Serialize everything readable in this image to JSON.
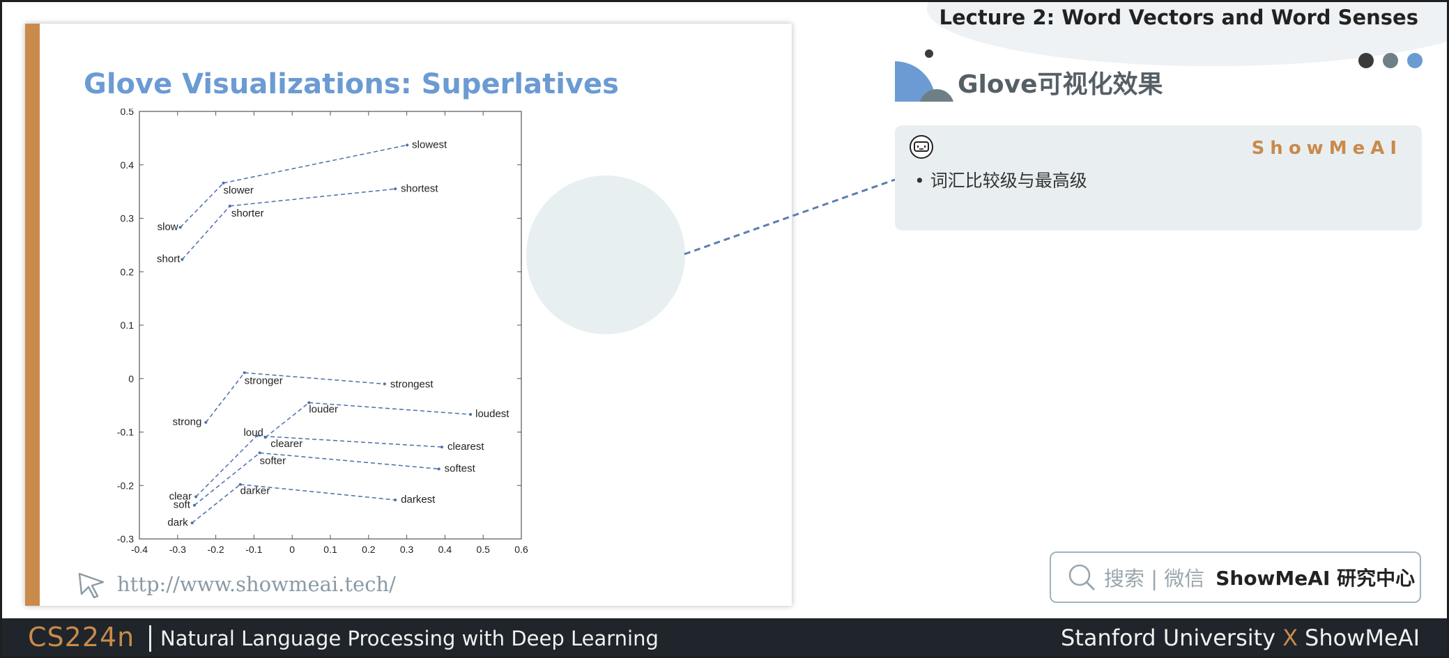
{
  "header": {
    "lecture_title": "Lecture 2:  Word Vectors and Word Senses",
    "dots": [
      "#3a3a3a",
      "#6e7f86",
      "#6b9bd2"
    ]
  },
  "slide": {
    "title": "Glove Visualizations: Superlatives",
    "url": "http://www.showmeai.tech/"
  },
  "section": {
    "title": "Glove可视化效果"
  },
  "card": {
    "brand": "ShowMeAI",
    "bullet": "•   词汇比较级与最高级"
  },
  "search": {
    "label": "搜索 | 微信",
    "brand": "ShowMeAI 研究中心"
  },
  "footer": {
    "course": "CS224n",
    "subtitle": "Natural Language Processing with Deep Learning",
    "right_left": "Stanford University",
    "right_x": "X",
    "right_right": "ShowMeAI"
  },
  "chart_data": {
    "type": "scatter",
    "title": "",
    "xlabel": "",
    "ylabel": "",
    "xlim": [
      -0.4,
      0.6
    ],
    "ylim": [
      -0.3,
      0.5
    ],
    "xticks": [
      "-0.4",
      "-0.3",
      "-0.2",
      "-0.1",
      "0",
      "0.1",
      "0.2",
      "0.3",
      "0.4",
      "0.5",
      "0.6"
    ],
    "yticks": [
      "-0.3",
      "-0.2",
      "-0.1",
      "0",
      "0.1",
      "0.2",
      "0.3",
      "0.4",
      "0.5"
    ],
    "grid": false,
    "color": "#4a6fa8",
    "points": [
      {
        "word": "slow",
        "x": -0.293,
        "y": 0.283,
        "anchor": "end",
        "dx": -3,
        "dy": 4
      },
      {
        "word": "slower",
        "x": -0.18,
        "y": 0.366,
        "anchor": "start",
        "dx": 0,
        "dy": 15
      },
      {
        "word": "slowest",
        "x": 0.301,
        "y": 0.437,
        "anchor": "start",
        "dx": 7,
        "dy": 4
      },
      {
        "word": "short",
        "x": -0.288,
        "y": 0.223,
        "anchor": "end",
        "dx": -3,
        "dy": 4
      },
      {
        "word": "shorter",
        "x": -0.163,
        "y": 0.323,
        "anchor": "start",
        "dx": 2,
        "dy": 15
      },
      {
        "word": "shortest",
        "x": 0.27,
        "y": 0.355,
        "anchor": "start",
        "dx": 8,
        "dy": 4
      },
      {
        "word": "strong",
        "x": -0.226,
        "y": -0.082,
        "anchor": "end",
        "dx": -6,
        "dy": 4
      },
      {
        "word": "stronger",
        "x": -0.125,
        "y": 0.011,
        "anchor": "start",
        "dx": 0,
        "dy": 16
      },
      {
        "word": "strongest",
        "x": 0.242,
        "y": -0.01,
        "anchor": "start",
        "dx": 8,
        "dy": 5
      },
      {
        "word": "loud",
        "x": -0.07,
        "y": -0.11,
        "anchor": "end",
        "dx": -3,
        "dy": -2
      },
      {
        "word": "louder",
        "x": 0.044,
        "y": -0.045,
        "anchor": "start",
        "dx": 0,
        "dy": 14
      },
      {
        "word": "loudest",
        "x": 0.467,
        "y": -0.067,
        "anchor": "start",
        "dx": 7,
        "dy": 4
      },
      {
        "word": "clear",
        "x": -0.252,
        "y": -0.221,
        "anchor": "end",
        "dx": -6,
        "dy": 4
      },
      {
        "word": "clearer",
        "x": -0.093,
        "y": -0.107,
        "anchor": "start",
        "dx": 20,
        "dy": 16
      },
      {
        "word": "clearest",
        "x": 0.392,
        "y": -0.128,
        "anchor": "start",
        "dx": 8,
        "dy": 4
      },
      {
        "word": "soft",
        "x": -0.256,
        "y": -0.237,
        "anchor": "end",
        "dx": -6,
        "dy": 4
      },
      {
        "word": "softer",
        "x": -0.085,
        "y": -0.139,
        "anchor": "start",
        "dx": 0,
        "dy": 16
      },
      {
        "word": "softest",
        "x": 0.384,
        "y": -0.169,
        "anchor": "start",
        "dx": 8,
        "dy": 4
      },
      {
        "word": "dark",
        "x": -0.262,
        "y": -0.27,
        "anchor": "end",
        "dx": -6,
        "dy": 4
      },
      {
        "word": "darker",
        "x": -0.136,
        "y": -0.198,
        "anchor": "start",
        "dx": 0,
        "dy": 14
      },
      {
        "word": "darkest",
        "x": 0.27,
        "y": -0.227,
        "anchor": "start",
        "dx": 8,
        "dy": 4
      }
    ],
    "chains": [
      [
        "slow",
        "slower",
        "slowest"
      ],
      [
        "short",
        "shorter",
        "shortest"
      ],
      [
        "strong",
        "stronger",
        "strongest"
      ],
      [
        "loud",
        "louder",
        "loudest"
      ],
      [
        "clear",
        "clearer",
        "clearest"
      ],
      [
        "soft",
        "softer",
        "softest"
      ],
      [
        "dark",
        "darker",
        "darkest"
      ]
    ]
  }
}
